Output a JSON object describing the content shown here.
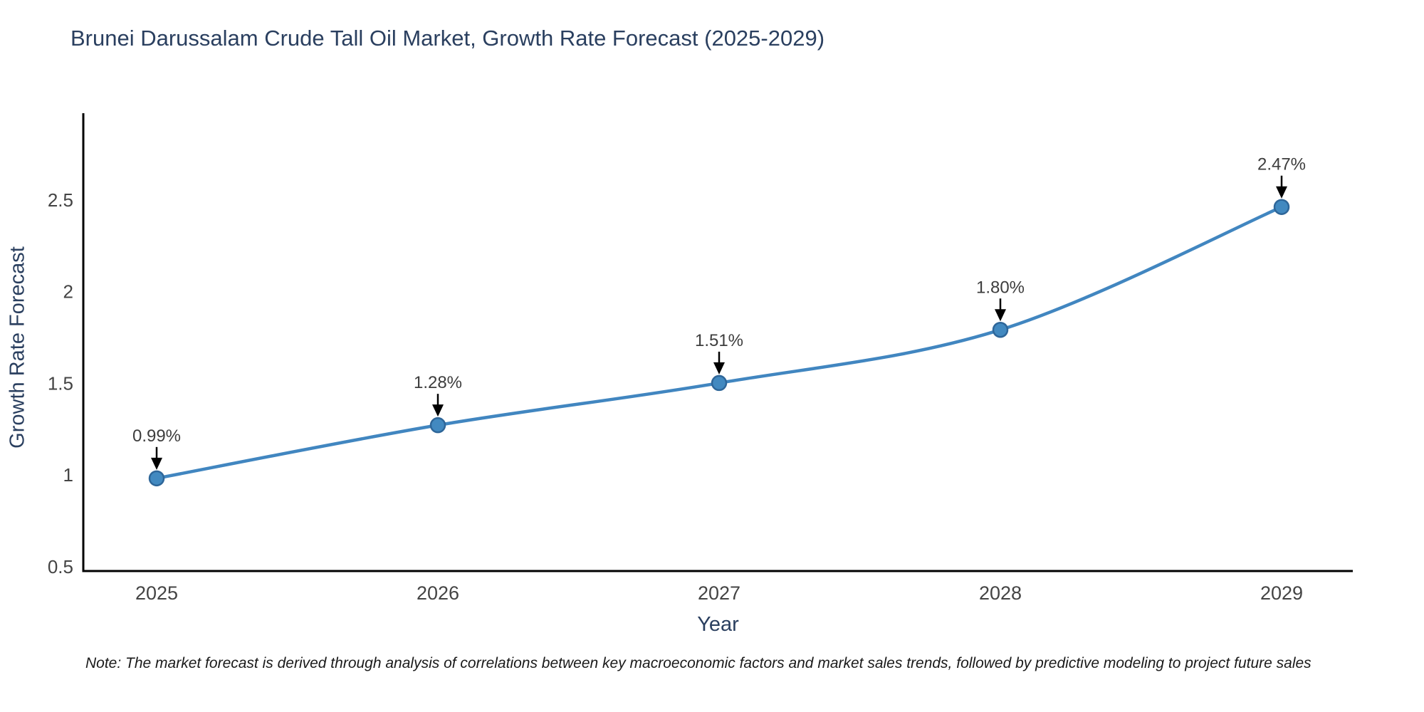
{
  "title": "Brunei Darussalam Crude Tall Oil Market, Growth Rate Forecast (2025-2029)",
  "note": "Note: The market forecast is derived through analysis of correlations between key macroeconomic factors and market sales trends, followed by predictive modeling to project future sales",
  "chart_data": {
    "type": "line",
    "x": [
      2025,
      2026,
      2027,
      2028,
      2029
    ],
    "values": [
      0.99,
      1.28,
      1.51,
      1.8,
      2.47
    ],
    "point_labels": [
      "0.99%",
      "1.28%",
      "1.51%",
      "1.80%",
      "2.47%"
    ],
    "series_name": "Growth Rate Forecast",
    "xlabel": "Year",
    "ylabel": "Growth Rate Forecast",
    "xticks": [
      "2025",
      "2026",
      "2027",
      "2028",
      "2029"
    ],
    "yticks": [
      "0.5",
      "1",
      "1.5",
      "2",
      "2.5"
    ],
    "ytick_values": [
      0.5,
      1.0,
      1.5,
      2.0,
      2.5
    ],
    "ylim": [
      0.5,
      3.0
    ],
    "grid": false,
    "legend": "none",
    "annotations_have_arrows": true,
    "colors": {
      "line": "#4186c0",
      "marker_fill": "#4289c0",
      "marker_edge": "#2e6699",
      "axis_line": "#000000",
      "tick_label": "#444444",
      "annotation_text": "#3d3d3d",
      "annotation_arrow": "#000000",
      "title_text": "#2a3f5f"
    }
  }
}
